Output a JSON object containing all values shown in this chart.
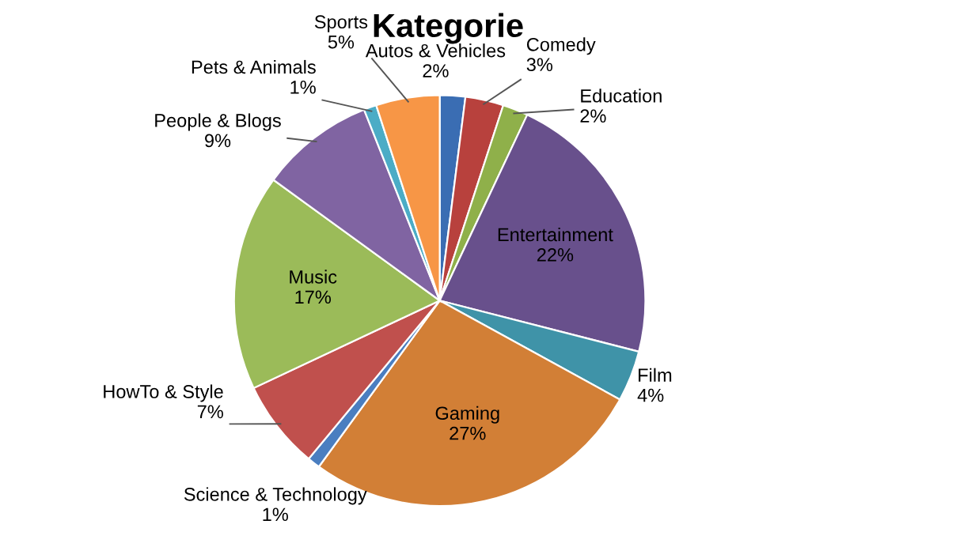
{
  "chart_data": {
    "type": "pie",
    "title": "Kategorie",
    "categories": [
      "Autos & Vehicles",
      "Comedy",
      "Education",
      "Entertainment",
      "Film",
      "Gaming",
      "Science & Technology",
      "HowTo & Style",
      "Music",
      "People & Blogs",
      "Pets & Animals",
      "Sports"
    ],
    "values": [
      2,
      3,
      2,
      22,
      4,
      27,
      1,
      7,
      17,
      9,
      1,
      5
    ],
    "value_labels": [
      "2%",
      "3%",
      "2%",
      "22%",
      "4%",
      "27%",
      "1%",
      "7%",
      "17%",
      "9%",
      "1%",
      "5%"
    ],
    "colors": [
      "#3a6db3",
      "#b8413d",
      "#8fb04a",
      "#68508c",
      "#3f93a8",
      "#d27f36",
      "#4a7ec0",
      "#c0504d",
      "#9bbb59",
      "#8064a2",
      "#4bacc6",
      "#f79646"
    ]
  }
}
